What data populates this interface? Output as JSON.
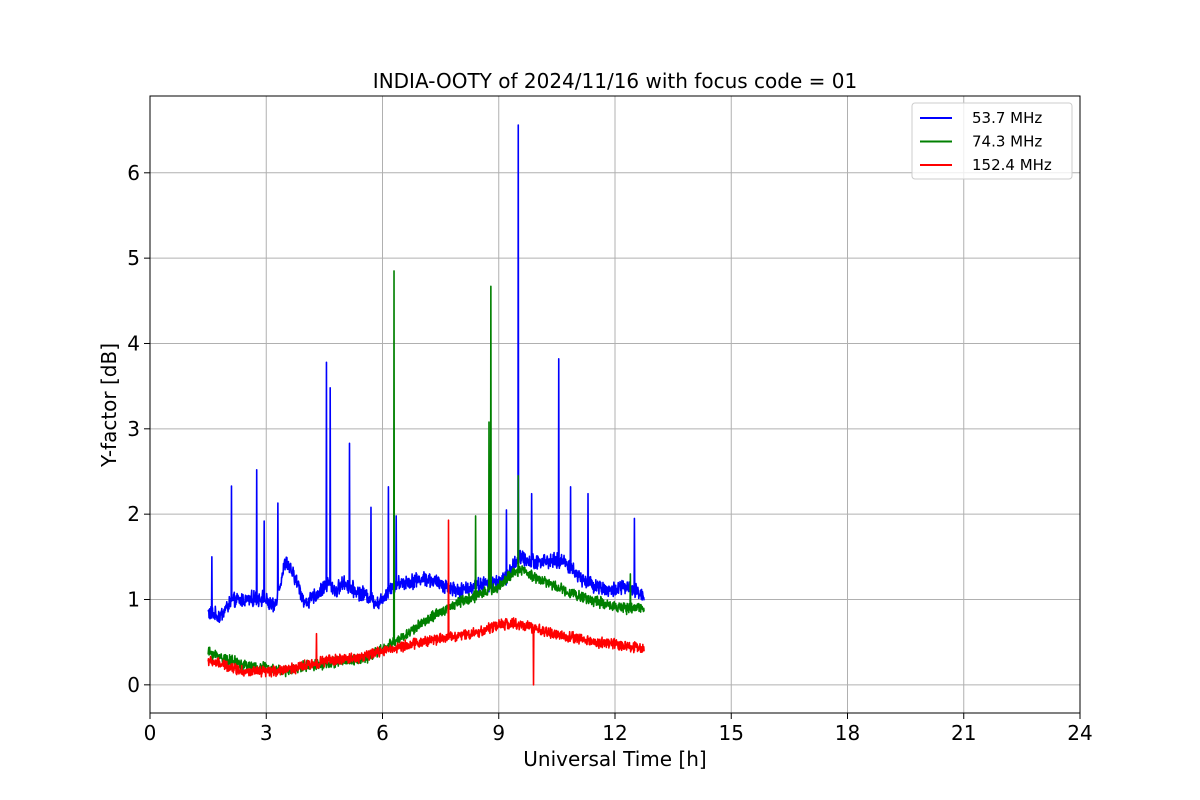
{
  "chart_data": {
    "type": "line",
    "title": "INDIA-OOTY of 2024/11/16 with focus code = 01",
    "xlabel": "Universal Time [h]",
    "ylabel": "Y-factor [dB]",
    "xlim": [
      0,
      24
    ],
    "ylim": [
      -0.33,
      6.9
    ],
    "x_ticks": [
      "0",
      "3",
      "6",
      "9",
      "12",
      "15",
      "18",
      "21",
      "24"
    ],
    "y_ticks": [
      "0",
      "1",
      "2",
      "3",
      "4",
      "5",
      "6"
    ],
    "grid": true,
    "legend_position": "top-right",
    "series": [
      {
        "name": " 53.7 MHz",
        "color": "#0000ff",
        "noise": 0.07,
        "x": [
          1.5,
          1.8,
          2.1,
          2.5,
          2.9,
          3.2,
          3.5,
          3.8,
          4.0,
          4.3,
          4.6,
          4.8,
          5.0,
          5.3,
          5.6,
          5.9,
          6.2,
          6.5,
          6.8,
          7.1,
          7.4,
          7.7,
          8.0,
          8.3,
          8.6,
          8.9,
          9.2,
          9.5,
          9.8,
          10.1,
          10.4,
          10.7,
          11.0,
          11.3,
          11.6,
          11.9,
          12.2,
          12.5,
          12.75
        ],
        "y": [
          0.85,
          0.8,
          0.98,
          1.0,
          1.02,
          0.9,
          1.45,
          1.2,
          0.95,
          1.05,
          1.2,
          1.1,
          1.2,
          1.1,
          1.05,
          0.95,
          1.15,
          1.2,
          1.22,
          1.25,
          1.2,
          1.15,
          1.1,
          1.15,
          1.18,
          1.2,
          1.25,
          1.5,
          1.45,
          1.45,
          1.45,
          1.45,
          1.3,
          1.2,
          1.15,
          1.1,
          1.15,
          1.1,
          1.05
        ],
        "spikes": [
          [
            1.6,
            1.5
          ],
          [
            2.1,
            2.33
          ],
          [
            2.75,
            2.52
          ],
          [
            2.95,
            1.92
          ],
          [
            3.3,
            2.13
          ],
          [
            4.55,
            3.78
          ],
          [
            4.65,
            3.48
          ],
          [
            5.15,
            2.83
          ],
          [
            5.7,
            2.08
          ],
          [
            6.15,
            2.32
          ],
          [
            6.35,
            1.98
          ],
          [
            9.2,
            2.05
          ],
          [
            9.5,
            6.56
          ],
          [
            9.85,
            2.24
          ],
          [
            10.55,
            3.82
          ],
          [
            10.85,
            2.32
          ],
          [
            11.3,
            2.24
          ],
          [
            12.5,
            1.95
          ]
        ]
      },
      {
        "name": " 74.3 MHz",
        "color": "#008000",
        "noise": 0.05,
        "x": [
          1.5,
          2.0,
          2.5,
          3.0,
          3.5,
          4.0,
          4.5,
          5.0,
          5.5,
          6.0,
          6.5,
          7.0,
          7.5,
          8.0,
          8.5,
          9.0,
          9.3,
          9.6,
          10.0,
          10.5,
          11.0,
          11.5,
          12.0,
          12.4,
          12.75
        ],
        "y": [
          0.38,
          0.3,
          0.22,
          0.2,
          0.15,
          0.22,
          0.25,
          0.28,
          0.3,
          0.42,
          0.55,
          0.72,
          0.85,
          0.98,
          1.05,
          1.15,
          1.28,
          1.35,
          1.25,
          1.15,
          1.05,
          0.98,
          0.92,
          0.88,
          0.92
        ],
        "spikes": [
          [
            6.3,
            4.85
          ],
          [
            8.4,
            1.98
          ],
          [
            8.75,
            3.08
          ],
          [
            8.8,
            4.67
          ],
          [
            9.5,
            2.45
          ],
          [
            12.4,
            1.3
          ]
        ]
      },
      {
        "name": "152.4 MHz",
        "color": "#ff0000",
        "noise": 0.05,
        "x": [
          1.5,
          2.0,
          2.5,
          3.0,
          3.5,
          4.0,
          4.5,
          5.0,
          5.5,
          6.0,
          6.5,
          7.0,
          7.5,
          8.0,
          8.5,
          9.0,
          9.3,
          9.6,
          10.0,
          10.5,
          11.0,
          11.5,
          12.0,
          12.4,
          12.75
        ],
        "y": [
          0.28,
          0.22,
          0.15,
          0.15,
          0.18,
          0.22,
          0.28,
          0.3,
          0.33,
          0.4,
          0.45,
          0.5,
          0.55,
          0.58,
          0.62,
          0.7,
          0.72,
          0.7,
          0.65,
          0.58,
          0.55,
          0.5,
          0.48,
          0.45,
          0.42
        ],
        "spikes": [
          [
            7.7,
            1.93
          ],
          [
            4.3,
            0.6
          ],
          [
            9.9,
            0.0
          ]
        ]
      }
    ]
  }
}
